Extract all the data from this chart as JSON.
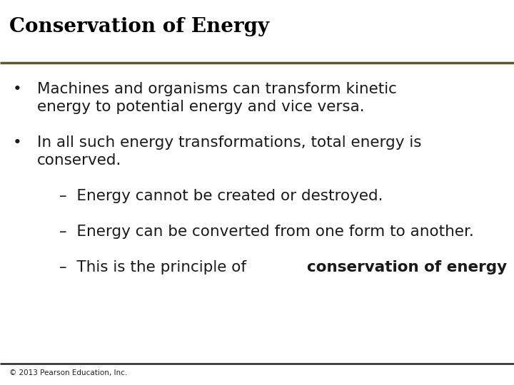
{
  "title": "Conservation of Energy",
  "title_fontsize": 20,
  "title_color": "#000000",
  "background_color": "#ffffff",
  "line_color": "#5a5a2a",
  "footer_text": "© 2013 Pearson Education, Inc.",
  "footer_fontsize": 7.5,
  "footer_color": "#222222",
  "footer_line_color": "#222222",
  "bullet1_line1": "Machines and organisms can transform kinetic",
  "bullet1_line2": "energy to potential energy and vice versa.",
  "bullet2_line1": "In all such energy transformations, total energy is",
  "bullet2_line2": "conserved.",
  "sub1": "–  Energy cannot be created or destroyed.",
  "sub2": "–  Energy can be converted from one form to another.",
  "sub3_prefix": "–  This is the principle of ",
  "sub3_bold": "conservation of energy",
  "sub3_suffix": ".",
  "body_fontsize": 15.5,
  "sub_fontsize": 15.5,
  "body_color": "#1a1a1a",
  "bullet_char": "•"
}
